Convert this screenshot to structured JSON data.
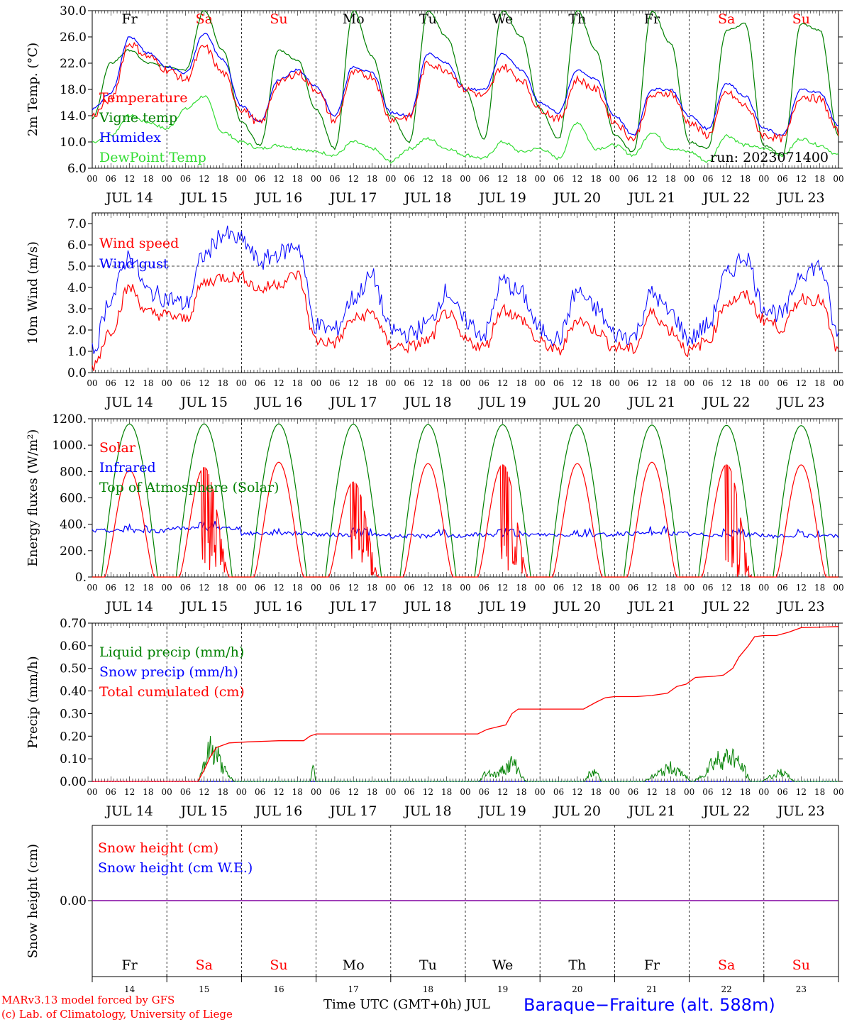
{
  "meta": {
    "run_label": "run: 2023071400",
    "days_dow": [
      "Fr",
      "Sa",
      "Su",
      "Mo",
      "Tu",
      "We",
      "Th",
      "Fr",
      "Sa",
      "Su"
    ],
    "weekend_days": [
      1,
      2,
      8,
      9
    ],
    "date_labels": [
      "JUL 14",
      "JUL 15",
      "JUL 16",
      "JUL 17",
      "JUL 18",
      "JUL 19",
      "JUL 20",
      "JUL 21",
      "JUL 22",
      "JUL 23"
    ],
    "hour_labels": [
      "00",
      "06",
      "12",
      "18"
    ],
    "bottom_day_numbers": [
      "14",
      "15",
      "16",
      "17",
      "18",
      "19",
      "20",
      "21",
      "22",
      "23"
    ],
    "time_axis_label": "Time UTC (GMT+0h) JUL",
    "station": "Baraque−Fraiture (alt. 588m)",
    "credit_line1": "MARv3.13 model forced by GFS",
    "credit_line2": "(c) Lab. of Climatology, University of Liege"
  },
  "colors": {
    "temperature": "#ff0000",
    "vigne": "#008000",
    "humidex": "#0000ff",
    "dewpoint": "#33dd33",
    "weekend": "#ff0000",
    "snow_line": "#8000a0"
  },
  "chart_data": [
    {
      "type": "line",
      "id": "temperature",
      "ylabel": "2m Temp. (°C)",
      "ylim": [
        6,
        30
      ],
      "yticks": [
        "6.0",
        "10.0",
        "14.0",
        "18.0",
        "22.0",
        "26.0",
        "30.0"
      ],
      "ytick_values": [
        6,
        10,
        14,
        18,
        22,
        26,
        30
      ],
      "xlim_hours": [
        0,
        240
      ],
      "series": [
        {
          "name": "Temperature",
          "color": "#ff0000",
          "x": [
            0,
            6,
            12,
            18,
            24,
            30,
            36,
            42,
            48,
            54,
            60,
            66,
            72,
            78,
            84,
            90,
            96,
            102,
            108,
            114,
            120,
            126,
            132,
            138,
            144,
            150,
            156,
            162,
            168,
            174,
            180,
            186,
            192,
            198,
            204,
            210,
            216,
            222,
            228,
            234,
            240
          ],
          "y": [
            14.0,
            16.5,
            25.0,
            23.0,
            21.0,
            19.5,
            24.5,
            20.5,
            15.0,
            12.8,
            19.0,
            20.5,
            18.0,
            13.2,
            20.5,
            20.0,
            13.5,
            13.8,
            22.0,
            21.0,
            18.0,
            17.0,
            21.5,
            19.5,
            15.0,
            13.5,
            19.5,
            18.0,
            13.0,
            10.5,
            17.0,
            17.5,
            13.0,
            11.0,
            17.5,
            15.5,
            11.0,
            10.5,
            17.0,
            16.5,
            11.5
          ]
        },
        {
          "name": "Vigne temp",
          "color": "#008000",
          "x": [
            0,
            6,
            12,
            18,
            24,
            30,
            36,
            42,
            48,
            54,
            60,
            66,
            72,
            78,
            84,
            90,
            96,
            102,
            108,
            114,
            120,
            126,
            132,
            138,
            144,
            150,
            156,
            162,
            168,
            174,
            180,
            186,
            192,
            198,
            204,
            210,
            216,
            222,
            228,
            234,
            240
          ],
          "y": [
            13.5,
            22.0,
            24.0,
            22.0,
            21.5,
            21.0,
            30.0,
            24.0,
            13.0,
            9.5,
            24.0,
            22.5,
            15.0,
            9.0,
            30.0,
            23.0,
            14.0,
            10.0,
            30.0,
            26.0,
            18.0,
            10.5,
            30.0,
            26.0,
            15.0,
            10.5,
            30.0,
            24.0,
            11.0,
            8.5,
            30.0,
            25.0,
            10.0,
            9.0,
            27.0,
            28.0,
            9.5,
            8.0,
            28.0,
            27.0,
            11.0
          ]
        },
        {
          "name": "Humidex",
          "color": "#0000ff",
          "x": [
            0,
            6,
            12,
            18,
            24,
            30,
            36,
            42,
            48,
            54,
            60,
            66,
            72,
            78,
            84,
            90,
            96,
            102,
            108,
            114,
            120,
            126,
            132,
            138,
            144,
            150,
            156,
            162,
            168,
            174,
            180,
            186,
            192,
            198,
            204,
            210,
            216,
            222,
            228,
            234,
            240
          ],
          "y": [
            15.0,
            17.5,
            26.0,
            23.5,
            21.5,
            20.5,
            26.5,
            22.5,
            15.5,
            13.0,
            19.5,
            21.0,
            18.5,
            14.0,
            21.5,
            20.5,
            14.5,
            14.0,
            23.5,
            22.0,
            18.0,
            18.0,
            23.5,
            21.0,
            16.0,
            14.5,
            21.0,
            19.5,
            14.0,
            11.0,
            18.0,
            18.0,
            14.0,
            12.0,
            19.0,
            17.0,
            12.0,
            11.0,
            18.0,
            17.5,
            12.5
          ]
        },
        {
          "name": "DewPoint Temp",
          "color": "#33dd33",
          "x": [
            0,
            6,
            12,
            18,
            24,
            30,
            36,
            42,
            48,
            54,
            60,
            66,
            72,
            78,
            84,
            90,
            96,
            102,
            108,
            114,
            120,
            126,
            132,
            138,
            144,
            150,
            156,
            162,
            168,
            174,
            180,
            186,
            192,
            198,
            204,
            210,
            216,
            222,
            228,
            234,
            240
          ],
          "y": [
            10.0,
            11.0,
            14.0,
            13.0,
            12.0,
            15.0,
            17.0,
            11.5,
            10.0,
            9.0,
            9.5,
            9.0,
            8.5,
            8.0,
            10.0,
            9.0,
            7.0,
            9.0,
            10.5,
            9.0,
            8.0,
            7.5,
            10.0,
            8.5,
            9.0,
            7.5,
            13.0,
            9.0,
            9.5,
            8.0,
            11.5,
            9.0,
            8.5,
            7.0,
            11.0,
            9.5,
            9.0,
            8.0,
            10.5,
            9.5,
            8.0
          ]
        }
      ]
    },
    {
      "type": "line",
      "id": "wind",
      "ylabel": "10m Wind (m/s)",
      "ylim": [
        0,
        7.5
      ],
      "yticks": [
        "0.0",
        "1.0",
        "2.0",
        "3.0",
        "4.0",
        "5.0",
        "6.0",
        "7.0"
      ],
      "ytick_values": [
        0,
        1,
        2,
        3,
        4,
        5,
        6,
        7
      ],
      "reference_line": 5.0,
      "xlim_hours": [
        0,
        240
      ],
      "series": [
        {
          "name": "Wind speed",
          "color": "#ff0000",
          "x": [
            0,
            6,
            12,
            18,
            24,
            30,
            36,
            42,
            48,
            54,
            60,
            66,
            72,
            78,
            84,
            90,
            96,
            102,
            108,
            114,
            120,
            126,
            132,
            138,
            144,
            150,
            156,
            162,
            168,
            174,
            180,
            186,
            192,
            198,
            204,
            210,
            216,
            222,
            228,
            234,
            240
          ],
          "y": [
            0.3,
            2.0,
            4.0,
            2.8,
            2.7,
            2.5,
            4.2,
            4.5,
            4.5,
            3.9,
            4.2,
            4.6,
            1.5,
            1.4,
            2.5,
            2.8,
            1.3,
            1.2,
            1.5,
            2.8,
            1.5,
            1.2,
            3.0,
            2.5,
            1.4,
            1.0,
            2.5,
            2.0,
            1.2,
            1.1,
            2.8,
            2.0,
            1.0,
            1.5,
            3.3,
            3.6,
            2.5,
            2.1,
            3.5,
            3.4,
            1.0
          ]
        },
        {
          "name": "Wind gust",
          "color": "#0000ff",
          "x": [
            0,
            6,
            12,
            18,
            24,
            30,
            36,
            42,
            48,
            54,
            60,
            66,
            72,
            78,
            84,
            90,
            96,
            102,
            108,
            114,
            120,
            126,
            132,
            138,
            144,
            150,
            156,
            162,
            168,
            174,
            180,
            186,
            192,
            198,
            204,
            210,
            216,
            222,
            228,
            234,
            240
          ],
          "y": [
            1.0,
            3.5,
            5.5,
            3.8,
            3.5,
            3.2,
            5.5,
            6.5,
            6.2,
            5.2,
            5.6,
            6.0,
            2.2,
            2.0,
            3.5,
            4.5,
            2.0,
            1.8,
            2.3,
            3.8,
            2.4,
            1.8,
            4.3,
            3.7,
            2.0,
            1.6,
            3.8,
            3.0,
            1.8,
            1.7,
            3.7,
            2.8,
            1.6,
            2.2,
            4.6,
            5.5,
            3.1,
            2.7,
            4.7,
            5.0,
            1.7
          ]
        }
      ]
    },
    {
      "type": "line",
      "id": "energy",
      "ylabel": "Energy fluxes (W/m²)",
      "ylim": [
        0,
        1200
      ],
      "yticks": [
        "0.",
        "200.",
        "400.",
        "600.",
        "800.",
        "1000.",
        "1200."
      ],
      "ytick_values": [
        0,
        200,
        400,
        600,
        800,
        1000,
        1200
      ],
      "xlim_hours": [
        0,
        240
      ],
      "series": [
        {
          "name": "Solar",
          "color": "#ff0000",
          "daily_peak": [
            810,
            830,
            870,
            720,
            860,
            850,
            860,
            870,
            850,
            850
          ]
        },
        {
          "name": "Infrared",
          "color": "#0000ff",
          "daily_mean": [
            350,
            370,
            330,
            320,
            310,
            320,
            320,
            330,
            320,
            310
          ]
        },
        {
          "name": "Top of Atmosphere (Solar)",
          "color": "#008000",
          "daily_peak": [
            1160,
            1160,
            1160,
            1158,
            1156,
            1155,
            1154,
            1152,
            1150,
            1148
          ]
        }
      ]
    },
    {
      "type": "line",
      "id": "precip",
      "ylabel": "Precip (mm/h)",
      "ylim": [
        0,
        0.7
      ],
      "yticks": [
        "0.00",
        "0.10",
        "0.20",
        "0.30",
        "0.40",
        "0.50",
        "0.60",
        "0.70"
      ],
      "ytick_values": [
        0,
        0.1,
        0.2,
        0.3,
        0.4,
        0.5,
        0.6,
        0.7
      ],
      "xlim_hours": [
        0,
        240
      ],
      "series": [
        {
          "name": "Liquid precip (mm/h)",
          "color": "#008000",
          "x": [
            0,
            34,
            36,
            38,
            40,
            42,
            44,
            46,
            48,
            70,
            71,
            72,
            124,
            127,
            130,
            133,
            135,
            140,
            158,
            160,
            162,
            164,
            177,
            180,
            183,
            186,
            189,
            193,
            196,
            199,
            202,
            206,
            209,
            212,
            215,
            218,
            222,
            224,
            226,
            240
          ],
          "y": [
            0,
            0,
            0.08,
            0.14,
            0.12,
            0.06,
            0.02,
            0.0,
            0.0,
            0.0,
            0.06,
            0.0,
            0.0,
            0.04,
            0.03,
            0.06,
            0.08,
            0.0,
            0.0,
            0.03,
            0.04,
            0.0,
            0.0,
            0.02,
            0.04,
            0.06,
            0.04,
            0.0,
            0.02,
            0.08,
            0.1,
            0.11,
            0.06,
            0.0,
            0.0,
            0.02,
            0.04,
            0.02,
            0.0,
            0.0
          ]
        },
        {
          "name": "Snow precip (mm/h)",
          "color": "#0000ff",
          "x": [
            0,
            240
          ],
          "y": [
            0,
            0
          ]
        },
        {
          "name": "Total cumulated (cm)",
          "color": "#ff0000",
          "x": [
            0,
            34,
            36,
            38,
            40,
            42,
            44,
            50,
            60,
            68,
            70,
            72,
            100,
            124,
            127,
            130,
            133,
            135,
            137,
            150,
            158,
            162,
            165,
            168,
            175,
            180,
            185,
            188,
            191,
            194,
            200,
            203,
            206,
            208,
            211,
            213,
            216,
            220,
            224,
            228,
            240
          ],
          "y": [
            0,
            0,
            0.05,
            0.11,
            0.15,
            0.16,
            0.17,
            0.175,
            0.18,
            0.18,
            0.2,
            0.21,
            0.21,
            0.21,
            0.23,
            0.24,
            0.25,
            0.3,
            0.32,
            0.32,
            0.32,
            0.35,
            0.37,
            0.375,
            0.375,
            0.38,
            0.39,
            0.42,
            0.43,
            0.46,
            0.465,
            0.47,
            0.5,
            0.55,
            0.6,
            0.64,
            0.645,
            0.645,
            0.66,
            0.68,
            0.685
          ]
        }
      ]
    },
    {
      "type": "line",
      "id": "snow",
      "ylabel": "Snow height (cm)",
      "ytick_label": "0.00",
      "xlim_hours": [
        0,
        240
      ],
      "series": [
        {
          "name": "Snow height (cm)",
          "color": "#ff0000",
          "x": [
            0,
            240
          ],
          "y": [
            0,
            0
          ]
        },
        {
          "name": "Snow height (cm W.E.)",
          "color": "#0000ff",
          "x": [
            0,
            240
          ],
          "y": [
            0,
            0
          ]
        }
      ]
    }
  ]
}
